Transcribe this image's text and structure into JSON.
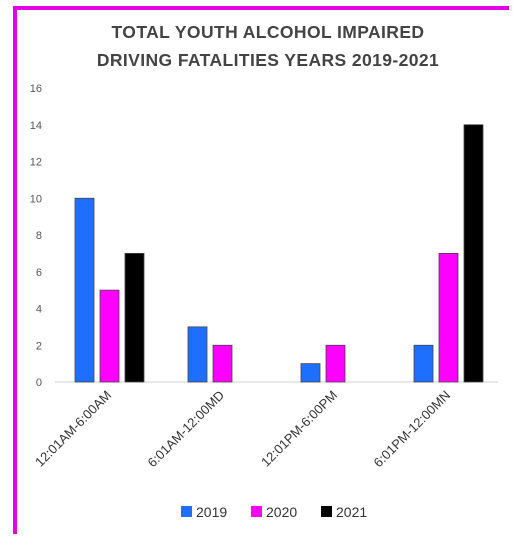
{
  "chart_data": {
    "type": "bar",
    "title_lines": [
      "TOTAL YOUTH ALCOHOL IMPAIRED",
      "DRIVING FATALITIES YEARS 2019-2021"
    ],
    "xlabel": "",
    "ylabel": "",
    "ylim": [
      0,
      16
    ],
    "yticks": [
      "0",
      "2",
      "4",
      "6",
      "8",
      "10",
      "12",
      "14",
      "16"
    ],
    "categories": [
      "12:01AM-6:00AM",
      "6:01AM-12:00MD",
      "12:01PM-6:00PM",
      "6:01PM-12:00MN"
    ],
    "series": [
      {
        "name": "2019",
        "color": "#1f6fff",
        "values": [
          10,
          3,
          1,
          2
        ]
      },
      {
        "name": "2020",
        "color": "#ff00ff",
        "values": [
          5,
          2,
          2,
          7
        ]
      },
      {
        "name": "2021",
        "color": "#000000",
        "values": [
          7,
          0,
          0,
          14
        ]
      }
    ],
    "grid": false,
    "legend_position": "bottom"
  }
}
